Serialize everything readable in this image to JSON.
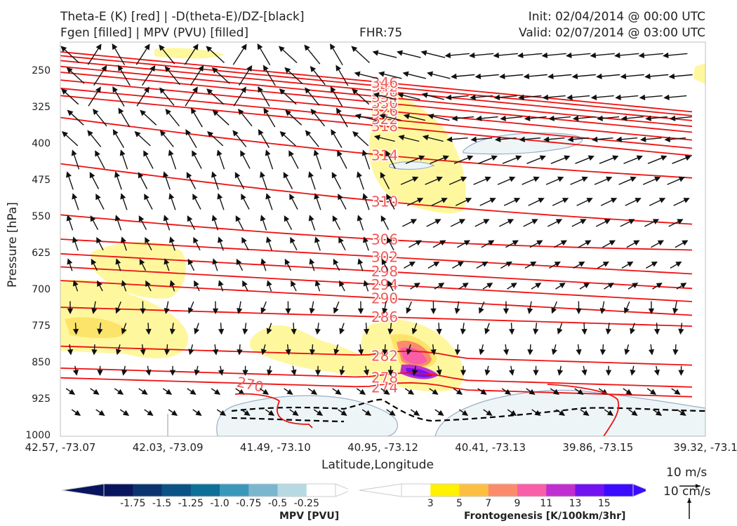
{
  "header": {
    "line1_left": "Theta-E (K) [red] | -D(theta-E)/DZ-[black]",
    "line2_left": "Fgen [filled] | MPV (PVU) [filled]",
    "fhr": "FHR:75",
    "init": "Init: 02/04/2014 @ 00:00 UTC",
    "valid": "Valid: 02/07/2014 @ 03:00 UTC"
  },
  "chart_data": {
    "type": "cross-section contour",
    "ylabel": "Pressure [hPa]",
    "xlabel": "Latitude,Longitude",
    "y_ticks": [
      "250",
      "325",
      "400",
      "475",
      "550",
      "625",
      "700",
      "775",
      "850",
      "925",
      "1000"
    ],
    "ylim": [
      1000,
      190
    ],
    "x_ticks": [
      "42.57, -73.07",
      "42.03, -73.09",
      "41.49, -73.10",
      "40.95, -73.12",
      "40.41, -73.13",
      "39.86, -73.15",
      "39.32, -73.1"
    ],
    "theta_e_contours": [
      {
        "value": 270,
        "label": "270",
        "pressure_left": 935
      },
      {
        "value": 274,
        "label": "274",
        "pressure_left": 880
      },
      {
        "value": 278,
        "label": "278",
        "pressure_left": 860
      },
      {
        "value": 282,
        "label": "282",
        "pressure_left": 815
      },
      {
        "value": 286,
        "label": "286",
        "pressure_left": 735
      },
      {
        "value": 290,
        "label": "290",
        "pressure_left": 680
      },
      {
        "value": 294,
        "label": "294",
        "pressure_left": 652
      },
      {
        "value": 298,
        "label": "298",
        "pressure_left": 625
      },
      {
        "value": 302,
        "label": "302",
        "pressure_left": 595
      },
      {
        "value": 306,
        "label": "306",
        "pressure_left": 545
      },
      {
        "value": 310,
        "label": "310",
        "pressure_left": 440
      },
      {
        "value": 314,
        "label": "314",
        "pressure_left": 345
      },
      {
        "value": 318,
        "label": "318",
        "pressure_left": 300
      },
      {
        "value": 322,
        "label": "322",
        "pressure_left": 285
      },
      {
        "value": 326,
        "label": "326",
        "pressure_left": 268
      },
      {
        "value": 330,
        "label": "330",
        "pressure_left": 252
      },
      {
        "value": 334,
        "label": "334",
        "pressure_left": 240
      },
      {
        "value": 338,
        "label": "338",
        "pressure_left": 228
      },
      {
        "value": 342,
        "label": "342",
        "pressure_left": 218
      },
      {
        "value": 346,
        "label": "346",
        "pressure_left": 210
      }
    ],
    "mpv_colorbar": {
      "title": "MPV [PVU]",
      "ticks": [
        "-1.75",
        "-1.5",
        "-1.25",
        "-1.0",
        "-0.75",
        "-0.5",
        "-0.25"
      ],
      "colors": [
        "#08145e",
        "#0a3470",
        "#0b5286",
        "#0d7099",
        "#3a98bb",
        "#7ab7cf",
        "#b7d9e3",
        "#ffffff"
      ]
    },
    "fgen_colorbar": {
      "title": "Frontogenesis [K/100km/3hr]",
      "ticks": [
        "3",
        "5",
        "7",
        "9",
        "11",
        "13",
        "15"
      ],
      "colors": [
        "#ffffff",
        "#fff100",
        "#fdbf3f",
        "#fb8b6b",
        "#f95ea8",
        "#c02ed0",
        "#7212f0",
        "#3b0bff"
      ]
    },
    "colors": {
      "theta_e": "#ee1111",
      "label": "#f05a5a",
      "fgen_light": "#fff79e",
      "fgen_mid": "#fce46a",
      "mpv_light": "#eef5f7"
    }
  },
  "reference": {
    "speed_label": "10 m/s",
    "vert_label": "10 cm/s"
  }
}
